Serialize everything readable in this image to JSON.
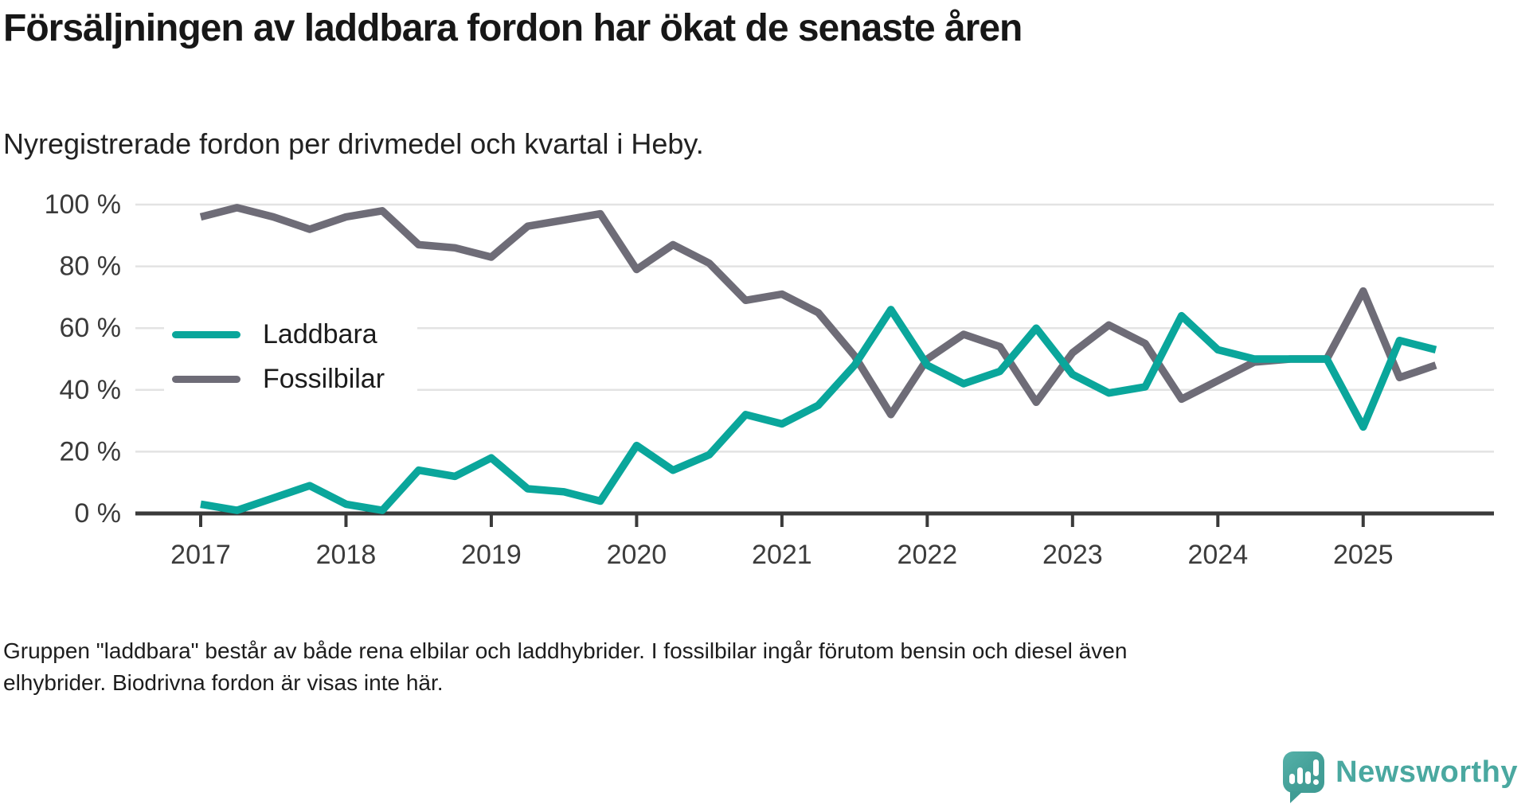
{
  "title": "Försäljningen av laddbara fordon har ökat de senaste åren",
  "subtitle": "Nyregistrerade fordon per drivmedel och kvartal i Heby.",
  "footnote": {
    "line1": "Gruppen \"laddbara\" består av både rena elbilar och laddhybrider. I fossilbilar ingår förutom bensin och diesel även",
    "line2": "elhybrider. Biodrivna fordon är visas inte här."
  },
  "brand": {
    "name": "Newsworthy"
  },
  "colors": {
    "laddbara": "#0aa69b",
    "fossilbilar": "#6e6c77",
    "axis": "#3a3a3a",
    "gridline": "#e3e3e3",
    "brand_teal": "#4aa8a0"
  },
  "chart_data": {
    "type": "line",
    "title": "Nyregistrerade fordon per drivmedel och kvartal i Heby.",
    "x_unit": "quarter",
    "x_range": [
      "2017 Q1",
      "2025 Q3"
    ],
    "ylim": [
      0,
      100
    ],
    "grid": "horizontal",
    "legend_position": "inside-left",
    "x_tick_labels": [
      "2017",
      "2018",
      "2019",
      "2020",
      "2021",
      "2022",
      "2023",
      "2024",
      "2025"
    ],
    "y_ticks": [
      {
        "value": 0,
        "label": "0 %"
      },
      {
        "value": 20,
        "label": "20 %"
      },
      {
        "value": 40,
        "label": "40 %"
      },
      {
        "value": 60,
        "label": "60 %"
      },
      {
        "value": 80,
        "label": "80 %"
      },
      {
        "value": 100,
        "label": "100 %"
      }
    ],
    "quarters": [
      "2017Q1",
      "2017Q2",
      "2017Q3",
      "2017Q4",
      "2018Q1",
      "2018Q2",
      "2018Q3",
      "2018Q4",
      "2019Q1",
      "2019Q2",
      "2019Q3",
      "2019Q4",
      "2020Q1",
      "2020Q2",
      "2020Q3",
      "2020Q4",
      "2021Q1",
      "2021Q2",
      "2021Q3",
      "2021Q4",
      "2022Q1",
      "2022Q2",
      "2022Q3",
      "2022Q4",
      "2023Q1",
      "2023Q2",
      "2023Q3",
      "2023Q4",
      "2024Q1",
      "2024Q2",
      "2024Q3",
      "2024Q4",
      "2025Q1",
      "2025Q2",
      "2025Q3"
    ],
    "series": [
      {
        "name": "Fossilbilar",
        "color": "#6e6c77",
        "values": [
          96,
          99,
          96,
          92,
          96,
          98,
          87,
          86,
          83,
          93,
          95,
          97,
          79,
          87,
          81,
          69,
          71,
          65,
          51,
          32,
          50,
          58,
          54,
          36,
          52,
          61,
          55,
          37,
          43,
          49,
          50,
          50,
          72,
          44,
          48
        ]
      },
      {
        "name": "Laddbara",
        "color": "#0aa69b",
        "values": [
          3,
          1,
          5,
          9,
          3,
          1,
          14,
          12,
          18,
          8,
          7,
          4,
          22,
          14,
          19,
          32,
          29,
          35,
          48,
          66,
          48,
          42,
          46,
          60,
          45,
          39,
          41,
          64,
          53,
          50,
          50,
          50,
          28,
          56,
          53
        ]
      }
    ],
    "legend_order": [
      "Laddbara",
      "Fossilbilar"
    ]
  }
}
